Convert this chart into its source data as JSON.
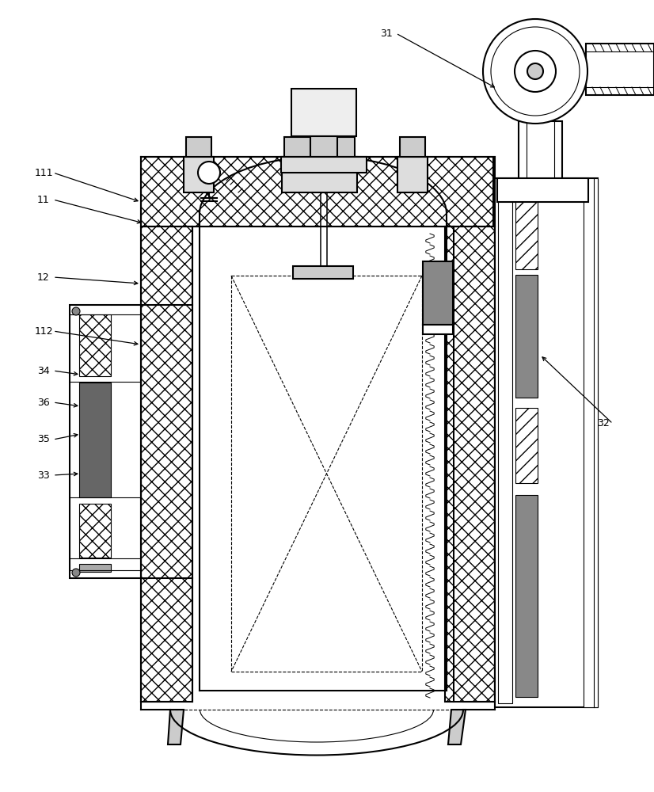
{
  "bg_color": "#ffffff",
  "line_color": "#000000",
  "figsize": [
    8.26,
    10.0
  ],
  "dpi": 100,
  "label_positions": [
    [
      "111",
      55,
      218,
      178,
      255
    ],
    [
      "11",
      55,
      252,
      182,
      282
    ],
    [
      "12",
      55,
      350,
      178,
      358
    ],
    [
      "112",
      55,
      418,
      178,
      435
    ],
    [
      "34",
      55,
      468,
      102,
      473
    ],
    [
      "36",
      55,
      508,
      102,
      513
    ],
    [
      "35",
      55,
      555,
      102,
      548
    ],
    [
      "33",
      55,
      600,
      102,
      598
    ],
    [
      "31",
      488,
      42,
      628,
      112
    ],
    [
      "32",
      762,
      535,
      682,
      448
    ]
  ]
}
